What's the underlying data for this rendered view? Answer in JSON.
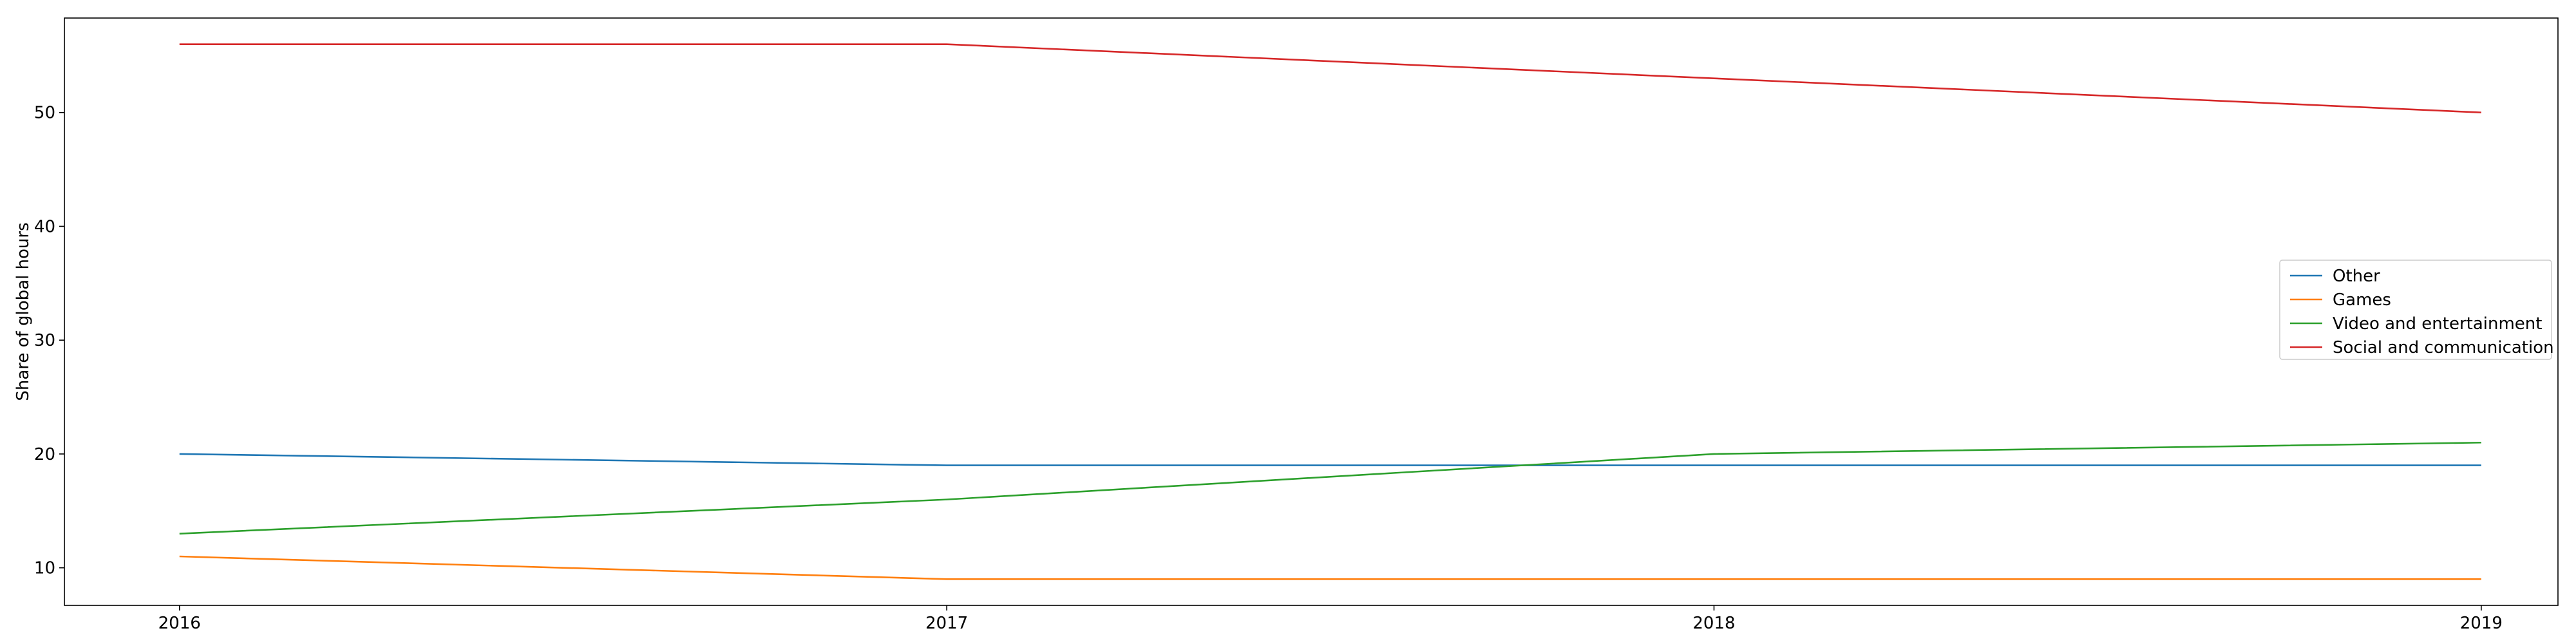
{
  "chart_data": {
    "type": "line",
    "title": "",
    "xlabel": "",
    "ylabel": "Share of global hours",
    "x": [
      "2016",
      "2017",
      "2018",
      "2019"
    ],
    "xlim": [
      2015.85,
      2019.1
    ],
    "ylim": [
      6.7,
      58.3
    ],
    "yticks": [
      "10",
      "20",
      "30",
      "40",
      "50"
    ],
    "grid": false,
    "legend_position": "center right",
    "series": [
      {
        "name": "Other",
        "color": "#1f77b4",
        "values": [
          20,
          19,
          19,
          19
        ]
      },
      {
        "name": "Games",
        "color": "#ff7f0e",
        "values": [
          11,
          9,
          9,
          9
        ]
      },
      {
        "name": "Video and entertainment",
        "color": "#2ca02c",
        "values": [
          13,
          16,
          20,
          21
        ]
      },
      {
        "name": "Social and communication",
        "color": "#d62728",
        "values": [
          56,
          56,
          53,
          50
        ]
      }
    ]
  }
}
